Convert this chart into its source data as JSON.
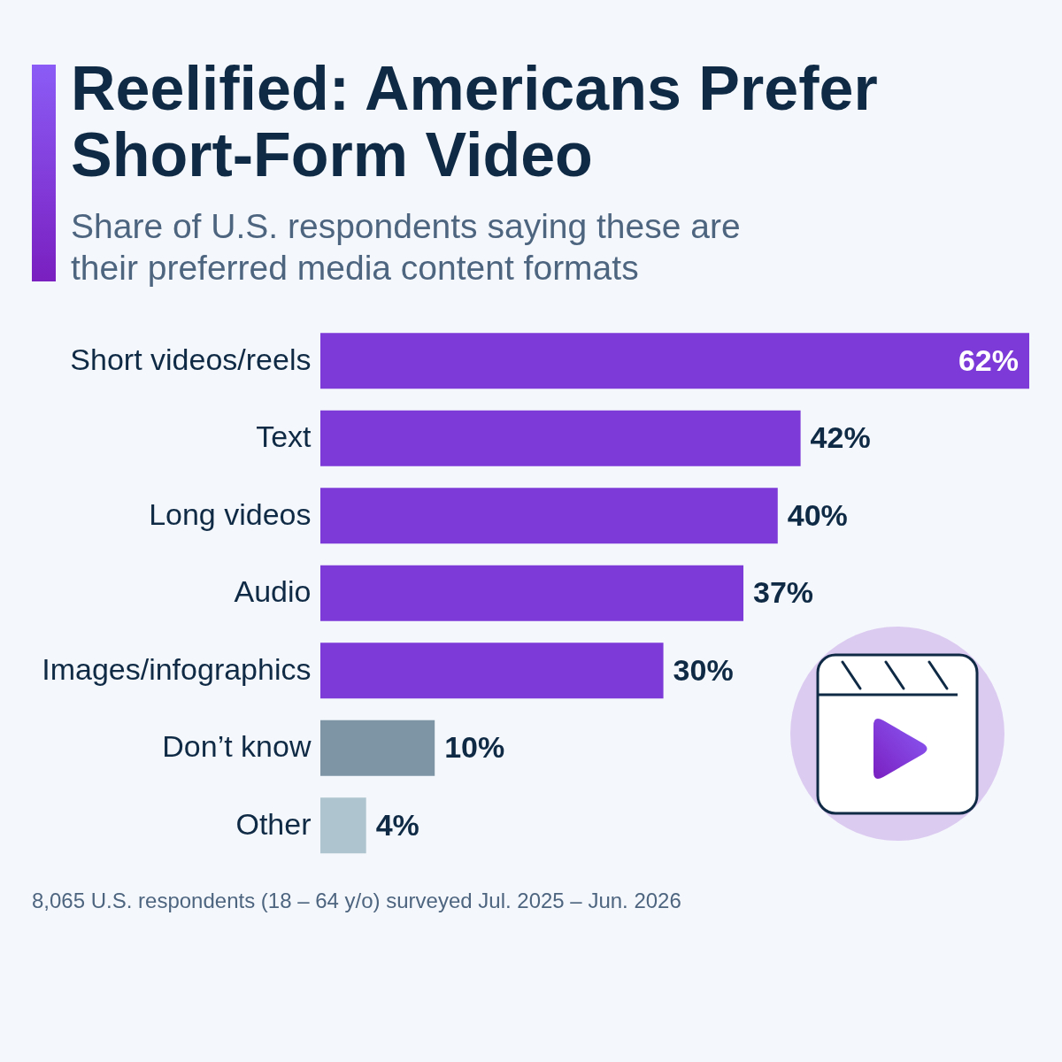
{
  "chart_data": {
    "type": "bar",
    "orientation": "horizontal",
    "title": "Reelified: Americans Prefer Short-Form Video",
    "subtitle": "Share of U.S. respondents saying these are their preferred media content formats",
    "categories": [
      "Short videos/reels",
      "Text",
      "Long videos",
      "Audio",
      "Images/infographics",
      "Don’t know",
      "Other"
    ],
    "values": [
      62,
      42,
      40,
      37,
      30,
      10,
      4
    ],
    "value_labels": [
      "62%",
      "42%",
      "40%",
      "37%",
      "30%",
      "10%",
      "4%"
    ],
    "colors": [
      "#7d3ad8",
      "#7d3ad8",
      "#7d3ad8",
      "#7d3ad8",
      "#7d3ad8",
      "#7e95a5",
      "#aec4ce"
    ],
    "annotations": [
      "8,065 U.S. respondents (18 – 64 y/o) surveyed Jul. 2025 – Jun. 2026"
    ]
  }
}
